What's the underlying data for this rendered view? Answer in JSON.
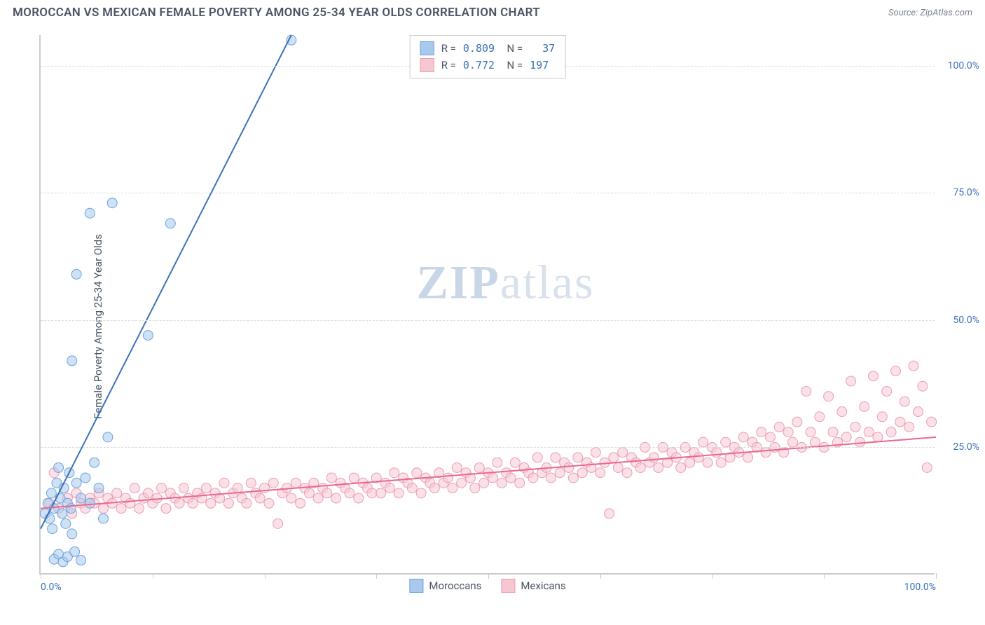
{
  "header": {
    "title": "MOROCCAN VS MEXICAN FEMALE POVERTY AMONG 25-34 YEAR OLDS CORRELATION CHART",
    "source_prefix": "Source: ",
    "source_name": "ZipAtlas.com"
  },
  "watermark": {
    "bold": "ZIP",
    "rest": "atlas"
  },
  "chart": {
    "type": "scatter",
    "ylabel": "Female Poverty Among 25-34 Year Olds",
    "xlim": [
      0,
      100
    ],
    "ylim": [
      0,
      106
    ],
    "xtick_positions": [
      0,
      12.5,
      25,
      37.5,
      50,
      62.5,
      75,
      87.5,
      100
    ],
    "xtick_labels_shown": {
      "0": "0.0%",
      "100": "100.0%"
    },
    "ytick_positions": [
      25,
      50,
      75,
      100
    ],
    "ytick_labels": [
      "25.0%",
      "50.0%",
      "75.0%",
      "100.0%"
    ],
    "grid_color": "#d7dade",
    "axis_color": "#c9ccd2",
    "background_color": "#ffffff",
    "marker_radius": 7,
    "marker_opacity": 0.55,
    "line_width": 2,
    "series": [
      {
        "name": "Moroccans",
        "color_fill": "#a8c8ec",
        "color_stroke": "#6ea3dd",
        "color_line": "#3b72b8",
        "R": "0.809",
        "N": "37",
        "trend": {
          "x1": 0,
          "y1": 9,
          "x2": 28,
          "y2": 106
        },
        "points": [
          [
            0.5,
            12
          ],
          [
            0.8,
            14
          ],
          [
            1.0,
            11
          ],
          [
            1.2,
            16
          ],
          [
            1.3,
            9
          ],
          [
            1.5,
            13
          ],
          [
            1.8,
            18
          ],
          [
            2.0,
            21
          ],
          [
            2.2,
            15
          ],
          [
            2.4,
            12
          ],
          [
            2.6,
            17
          ],
          [
            2.8,
            10
          ],
          [
            3.0,
            14
          ],
          [
            3.2,
            20
          ],
          [
            3.4,
            13
          ],
          [
            3.5,
            8
          ],
          [
            1.5,
            3
          ],
          [
            2.0,
            4
          ],
          [
            2.5,
            2.5
          ],
          [
            3.0,
            3.5
          ],
          [
            3.8,
            4.5
          ],
          [
            4.5,
            2.8
          ],
          [
            3.5,
            42
          ],
          [
            4.0,
            59
          ],
          [
            5.5,
            71
          ],
          [
            7.5,
            27
          ],
          [
            8.0,
            73
          ],
          [
            12.0,
            47
          ],
          [
            14.5,
            69
          ],
          [
            28.0,
            105
          ],
          [
            4.0,
            18
          ],
          [
            4.5,
            15
          ],
          [
            5.0,
            19
          ],
          [
            5.5,
            14
          ],
          [
            6.0,
            22
          ],
          [
            6.5,
            17
          ],
          [
            7.0,
            11
          ]
        ]
      },
      {
        "name": "Mexicans",
        "color_fill": "#f6c6d3",
        "color_stroke": "#ed9db3",
        "color_line": "#e86a8e",
        "R": "0.772",
        "N": "197",
        "trend": {
          "x1": 0,
          "y1": 13,
          "x2": 100,
          "y2": 27
        },
        "points": [
          [
            1,
            14
          ],
          [
            2,
            13
          ],
          [
            3,
            15
          ],
          [
            3.5,
            12
          ],
          [
            4,
            16
          ],
          [
            4.5,
            14
          ],
          [
            5,
            13
          ],
          [
            5.5,
            15
          ],
          [
            6,
            14
          ],
          [
            6.5,
            16
          ],
          [
            7,
            13
          ],
          [
            7.5,
            15
          ],
          [
            8,
            14
          ],
          [
            8.5,
            16
          ],
          [
            9,
            13
          ],
          [
            9.5,
            15
          ],
          [
            10,
            14
          ],
          [
            10.5,
            17
          ],
          [
            11,
            13
          ],
          [
            11.5,
            15
          ],
          [
            12,
            16
          ],
          [
            12.5,
            14
          ],
          [
            13,
            15
          ],
          [
            13.5,
            17
          ],
          [
            14,
            13
          ],
          [
            14.5,
            16
          ],
          [
            15,
            15
          ],
          [
            15.5,
            14
          ],
          [
            16,
            17
          ],
          [
            16.5,
            15
          ],
          [
            17,
            14
          ],
          [
            17.5,
            16
          ],
          [
            18,
            15
          ],
          [
            18.5,
            17
          ],
          [
            19,
            14
          ],
          [
            19.5,
            16
          ],
          [
            20,
            15
          ],
          [
            20.5,
            18
          ],
          [
            21,
            14
          ],
          [
            21.5,
            16
          ],
          [
            22,
            17
          ],
          [
            22.5,
            15
          ],
          [
            23,
            14
          ],
          [
            23.5,
            18
          ],
          [
            24,
            16
          ],
          [
            24.5,
            15
          ],
          [
            25,
            17
          ],
          [
            25.5,
            14
          ],
          [
            26,
            18
          ],
          [
            26.5,
            10
          ],
          [
            27,
            16
          ],
          [
            27.5,
            17
          ],
          [
            28,
            15
          ],
          [
            28.5,
            18
          ],
          [
            29,
            14
          ],
          [
            29.5,
            17
          ],
          [
            30,
            16
          ],
          [
            30.5,
            18
          ],
          [
            31,
            15
          ],
          [
            31.5,
            17
          ],
          [
            32,
            16
          ],
          [
            32.5,
            19
          ],
          [
            33,
            15
          ],
          [
            33.5,
            18
          ],
          [
            34,
            17
          ],
          [
            34.5,
            16
          ],
          [
            35,
            19
          ],
          [
            35.5,
            15
          ],
          [
            36,
            18
          ],
          [
            36.5,
            17
          ],
          [
            37,
            16
          ],
          [
            37.5,
            19
          ],
          [
            38,
            16
          ],
          [
            38.5,
            18
          ],
          [
            39,
            17
          ],
          [
            39.5,
            20
          ],
          [
            40,
            16
          ],
          [
            40.5,
            19
          ],
          [
            41,
            18
          ],
          [
            41.5,
            17
          ],
          [
            42,
            20
          ],
          [
            42.5,
            16
          ],
          [
            43,
            19
          ],
          [
            43.5,
            18
          ],
          [
            44,
            17
          ],
          [
            44.5,
            20
          ],
          [
            45,
            18
          ],
          [
            45.5,
            19
          ],
          [
            46,
            17
          ],
          [
            46.5,
            21
          ],
          [
            47,
            18
          ],
          [
            47.5,
            20
          ],
          [
            48,
            19
          ],
          [
            48.5,
            17
          ],
          [
            49,
            21
          ],
          [
            49.5,
            18
          ],
          [
            50,
            20
          ],
          [
            50.5,
            19
          ],
          [
            51,
            22
          ],
          [
            51.5,
            18
          ],
          [
            52,
            20
          ],
          [
            52.5,
            19
          ],
          [
            53,
            22
          ],
          [
            53.5,
            18
          ],
          [
            54,
            21
          ],
          [
            54.5,
            20
          ],
          [
            55,
            19
          ],
          [
            55.5,
            23
          ],
          [
            56,
            20
          ],
          [
            56.5,
            21
          ],
          [
            57,
            19
          ],
          [
            57.5,
            23
          ],
          [
            58,
            20
          ],
          [
            58.5,
            22
          ],
          [
            59,
            21
          ],
          [
            59.5,
            19
          ],
          [
            60,
            23
          ],
          [
            60.5,
            20
          ],
          [
            61,
            22
          ],
          [
            61.5,
            21
          ],
          [
            62,
            24
          ],
          [
            62.5,
            20
          ],
          [
            63,
            22
          ],
          [
            63.5,
            12
          ],
          [
            64,
            23
          ],
          [
            64.5,
            21
          ],
          [
            65,
            24
          ],
          [
            65.5,
            20
          ],
          [
            66,
            23
          ],
          [
            66.5,
            22
          ],
          [
            67,
            21
          ],
          [
            67.5,
            25
          ],
          [
            68,
            22
          ],
          [
            68.5,
            23
          ],
          [
            69,
            21
          ],
          [
            69.5,
            25
          ],
          [
            70,
            22
          ],
          [
            70.5,
            24
          ],
          [
            71,
            23
          ],
          [
            71.5,
            21
          ],
          [
            72,
            25
          ],
          [
            72.5,
            22
          ],
          [
            73,
            24
          ],
          [
            73.5,
            23
          ],
          [
            74,
            26
          ],
          [
            74.5,
            22
          ],
          [
            75,
            25
          ],
          [
            75.5,
            24
          ],
          [
            76,
            22
          ],
          [
            76.5,
            26
          ],
          [
            77,
            23
          ],
          [
            77.5,
            25
          ],
          [
            78,
            24
          ],
          [
            78.5,
            27
          ],
          [
            79,
            23
          ],
          [
            79.5,
            26
          ],
          [
            80,
            25
          ],
          [
            80.5,
            28
          ],
          [
            81,
            24
          ],
          [
            81.5,
            27
          ],
          [
            82,
            25
          ],
          [
            82.5,
            29
          ],
          [
            83,
            24
          ],
          [
            83.5,
            28
          ],
          [
            84,
            26
          ],
          [
            84.5,
            30
          ],
          [
            85,
            25
          ],
          [
            85.5,
            36
          ],
          [
            86,
            28
          ],
          [
            86.5,
            26
          ],
          [
            87,
            31
          ],
          [
            87.5,
            25
          ],
          [
            88,
            35
          ],
          [
            88.5,
            28
          ],
          [
            89,
            26
          ],
          [
            89.5,
            32
          ],
          [
            90,
            27
          ],
          [
            90.5,
            38
          ],
          [
            91,
            29
          ],
          [
            91.5,
            26
          ],
          [
            92,
            33
          ],
          [
            92.5,
            28
          ],
          [
            93,
            39
          ],
          [
            93.5,
            27
          ],
          [
            94,
            31
          ],
          [
            94.5,
            36
          ],
          [
            95,
            28
          ],
          [
            95.5,
            40
          ],
          [
            96,
            30
          ],
          [
            96.5,
            34
          ],
          [
            97,
            29
          ],
          [
            97.5,
            41
          ],
          [
            98,
            32
          ],
          [
            98.5,
            37
          ],
          [
            99,
            21
          ],
          [
            99.5,
            30
          ],
          [
            1.5,
            20
          ]
        ]
      }
    ]
  }
}
